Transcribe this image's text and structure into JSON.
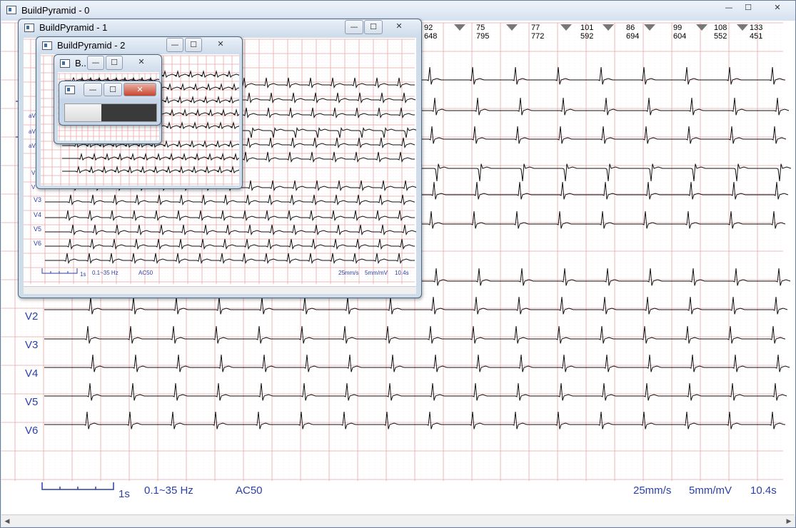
{
  "main_window": {
    "title": "BuildPyramid - 0",
    "controls": {
      "minimize": "—",
      "maximize": "☐",
      "close": "✕"
    }
  },
  "window1": {
    "title": "BuildPyramid - 1"
  },
  "window2": {
    "title": "BuildPyramid - 2"
  },
  "window3": {
    "title": "B.."
  },
  "window4": {
    "title": ""
  },
  "progress": {
    "value_percent": 40
  },
  "beat_markers": [
    {
      "top": "92",
      "bottom": "648"
    },
    {
      "top": "75",
      "bottom": "795"
    },
    {
      "top": "77",
      "bottom": "772"
    },
    {
      "top": "101",
      "bottom": "592"
    },
    {
      "top": "86",
      "bottom": "694"
    },
    {
      "top": "99",
      "bottom": "604"
    },
    {
      "top": "108",
      "bottom": "552"
    },
    {
      "top": "133",
      "bottom": "451"
    }
  ],
  "leads_visible": [
    "V2",
    "V3",
    "V4",
    "V5",
    "V6"
  ],
  "window1_leads": [
    "V3",
    "V4",
    "V5",
    "V6"
  ],
  "window2_leads": [
    "aV",
    "aV",
    "aV",
    "V",
    "V"
  ],
  "footer": {
    "scale_label": "1s",
    "filter": "0.1~35  Hz",
    "ac": "AC50",
    "speed": "25mm/s",
    "gain": "5mm/mV",
    "duration": "10.4s"
  },
  "footer_w1": {
    "scale_label": "1s",
    "filter": "0.1~35  Hz",
    "ac": "AC50",
    "speed": "25mm/s",
    "gain": "5mm/mV",
    "duration": "10.4s"
  },
  "colors": {
    "grid_major": "#e8a8a8",
    "grid_minor": "#f3d4d4",
    "trace": "#111111",
    "label": "#2b3fa8",
    "title_bar": "#d6e1ef"
  }
}
